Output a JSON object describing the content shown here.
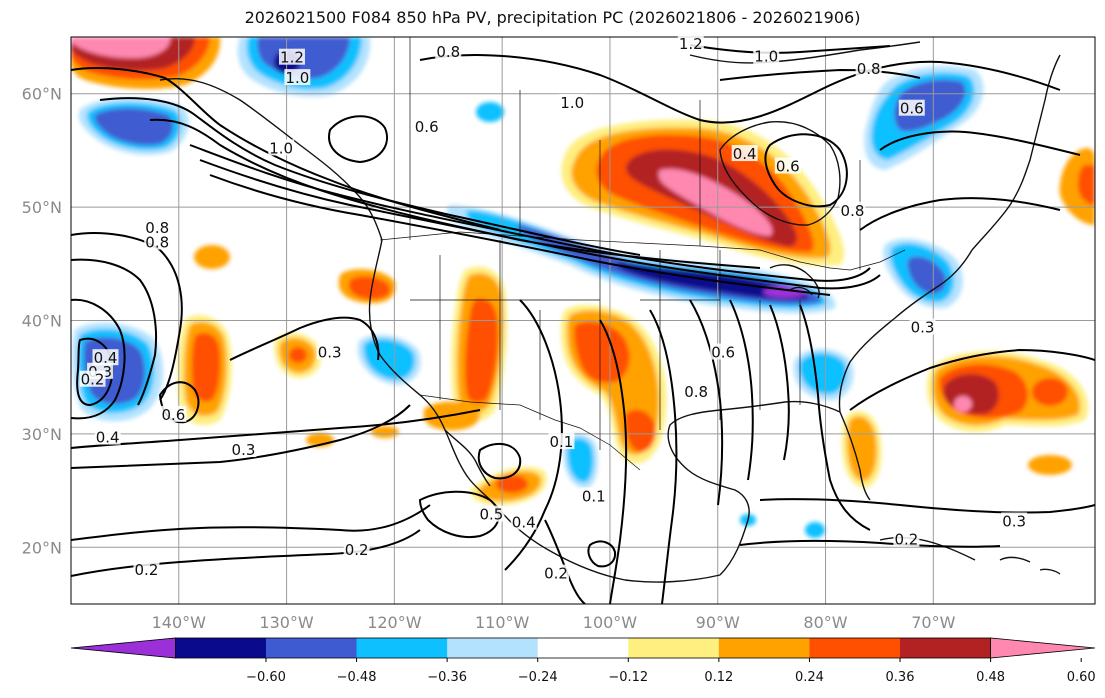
{
  "title": "2026021500 F084 850 hPa PV, precipitation PC (2026021806 - 2026021906)",
  "map": {
    "lon_range": [
      -150,
      -55
    ],
    "lat_range": [
      15,
      65
    ],
    "lat_ticks": [
      {
        "lat": 60,
        "label": "60°N"
      },
      {
        "lat": 50,
        "label": "50°N"
      },
      {
        "lat": 40,
        "label": "40°N"
      },
      {
        "lat": 30,
        "label": "30°N"
      },
      {
        "lat": 20,
        "label": "20°N"
      }
    ],
    "lon_ticks": [
      {
        "lon": -140,
        "label": "140°W"
      },
      {
        "lon": -130,
        "label": "130°W"
      },
      {
        "lon": -120,
        "label": "120°W"
      },
      {
        "lon": -110,
        "label": "110°W"
      },
      {
        "lon": -100,
        "label": "100°W"
      },
      {
        "lon": -90,
        "label": "90°W"
      },
      {
        "lon": -80,
        "label": "80°W"
      },
      {
        "lon": -70,
        "label": "70°W"
      }
    ],
    "grid": true
  },
  "colorbar": {
    "colors": [
      "#9b30d9",
      "#0a0a8c",
      "#3f5bd1",
      "#0fc0ff",
      "#b3e2ff",
      "#ffffff",
      "#ffee80",
      "#ffa200",
      "#ff4f00",
      "#b22222",
      "#ff88b0"
    ],
    "tick_labels": [
      "−0.60",
      "−0.48",
      "−0.36",
      "−0.24",
      "−0.12",
      "0.12",
      "0.24",
      "0.36",
      "0.48",
      "0.60"
    ]
  },
  "contour_labels": [
    {
      "text": "1.2",
      "lon": -129.5,
      "lat": 63.0
    },
    {
      "text": "1.0",
      "lon": -129.0,
      "lat": 61.2
    },
    {
      "text": "0.8",
      "lon": -115.0,
      "lat": 63.5
    },
    {
      "text": "1.2",
      "lon": -92.5,
      "lat": 64.2
    },
    {
      "text": "1.0",
      "lon": -85.5,
      "lat": 63.1
    },
    {
      "text": "0.8",
      "lon": -76.0,
      "lat": 62.0
    },
    {
      "text": "0.6",
      "lon": -72.0,
      "lat": 58.5
    },
    {
      "text": "1.0",
      "lon": -103.5,
      "lat": 59.0
    },
    {
      "text": "0.6",
      "lon": -117.0,
      "lat": 56.9
    },
    {
      "text": "1.0",
      "lon": -130.5,
      "lat": 55.0
    },
    {
      "text": "0.4",
      "lon": -87.5,
      "lat": 54.5
    },
    {
      "text": "0.6",
      "lon": -83.5,
      "lat": 53.4
    },
    {
      "text": "0.8",
      "lon": -77.5,
      "lat": 49.5
    },
    {
      "text": "0.8",
      "lon": -142.0,
      "lat": 48.0
    },
    {
      "text": "0.8",
      "lon": -142.0,
      "lat": 46.7
    },
    {
      "text": "0.4",
      "lon": -146.8,
      "lat": 36.5
    },
    {
      "text": "0.3",
      "lon": -147.3,
      "lat": 35.3
    },
    {
      "text": "0.2",
      "lon": -148.0,
      "lat": 34.6
    },
    {
      "text": "0.6",
      "lon": -140.5,
      "lat": 31.5
    },
    {
      "text": "0.3",
      "lon": -126.0,
      "lat": 37.0
    },
    {
      "text": "0.4",
      "lon": -146.6,
      "lat": 29.5
    },
    {
      "text": "0.3",
      "lon": -134.0,
      "lat": 28.4
    },
    {
      "text": "0.5",
      "lon": -111.0,
      "lat": 22.7
    },
    {
      "text": "0.4",
      "lon": -108.0,
      "lat": 22.0
    },
    {
      "text": "0.2",
      "lon": -123.5,
      "lat": 19.6
    },
    {
      "text": "0.2",
      "lon": -143.0,
      "lat": 17.8
    },
    {
      "text": "0.2",
      "lon": -105.0,
      "lat": 17.5
    },
    {
      "text": "0.1",
      "lon": -104.5,
      "lat": 29.1
    },
    {
      "text": "0.1",
      "lon": -101.5,
      "lat": 24.3
    },
    {
      "text": "0.8",
      "lon": -92.0,
      "lat": 33.5
    },
    {
      "text": "0.6",
      "lon": -89.5,
      "lat": 37.0
    },
    {
      "text": "0.3",
      "lon": -71.0,
      "lat": 39.2
    },
    {
      "text": "0.3",
      "lon": -62.5,
      "lat": 22.1
    },
    {
      "text": "0.2",
      "lon": -72.5,
      "lat": 20.5
    }
  ]
}
